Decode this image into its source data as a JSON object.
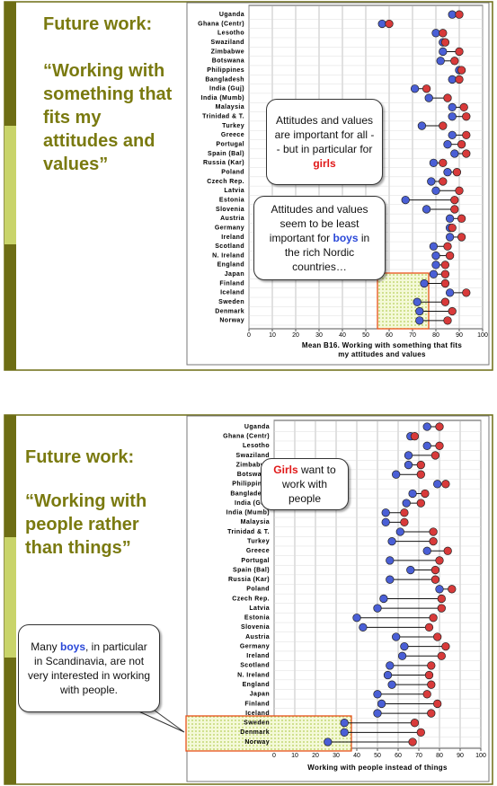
{
  "chart_data": [
    {
      "type": "dumbbell",
      "title": "Future work:",
      "subtitle": "“Working with something that fits my attitudes and values”",
      "xlabel": "Mean B16. Working with something that fits my attitudes and values",
      "categories": [
        "Uganda",
        "Ghana (Centr)",
        "Lesotho",
        "Swaziland",
        "Zimbabwe",
        "Botswana",
        "Philippines",
        "Bangladesh",
        "India (Guj)",
        "India (Mumb)",
        "Malaysia",
        "Trinidad & T.",
        "Turkey",
        "Greece",
        "Portugal",
        "Spain (Bal)",
        "Russia (Kar)",
        "Poland",
        "Czech Rep.",
        "Latvia",
        "Estonia",
        "Slovenia",
        "Austria",
        "Germany",
        "Ireland",
        "Scotland",
        "N. Ireland",
        "England",
        "Japan",
        "Finland",
        "Iceland",
        "Sweden",
        "Denmark",
        "Norway"
      ],
      "series": [
        {
          "color": "#4a5fd6",
          "values": [
            87,
            57,
            80,
            83,
            83,
            82,
            90,
            87,
            71,
            77,
            87,
            87,
            74,
            87,
            85,
            88,
            79,
            85,
            78,
            80,
            67,
            76,
            86,
            86,
            86,
            79,
            80,
            80,
            79,
            75,
            86,
            72,
            73,
            73
          ]
        },
        {
          "color": "#d83a3a",
          "values": [
            90,
            60,
            83,
            84,
            90,
            88,
            91,
            90,
            76,
            85,
            92,
            93,
            83,
            93,
            91,
            93,
            83,
            89,
            83,
            90,
            88,
            88,
            91,
            87,
            91,
            85,
            86,
            84,
            84,
            84,
            93,
            84,
            87,
            85
          ]
        }
      ],
      "xlim": [
        0,
        100
      ],
      "xticks": [
        0,
        10,
        20,
        30,
        40,
        50,
        60,
        70,
        80,
        90,
        100
      ],
      "grid": true,
      "annotations": [
        [
          {
            "text": "Attitudes and values are important for all  - - but in particular for "
          },
          {
            "text": "girls",
            "color": "#e01818"
          }
        ],
        [
          {
            "text": "Attitudes and values seem to be least important for "
          },
          {
            "text": "boys",
            "color": "#2a48d8"
          },
          {
            "text": " in the rich Nordic countries…"
          }
        ]
      ]
    },
    {
      "type": "dumbbell",
      "title": "Future work:",
      "subtitle": "“Working with people rather than things”",
      "xlabel": "Working with people instead of things",
      "categories": [
        "Uganda",
        "Ghana (Centr)",
        "Lesotho",
        "Swaziland",
        "Zimbabwe",
        "Botswana",
        "Philippines",
        "Bangladesh",
        "India (Guj)",
        "India (Mumb)",
        "Malaysia",
        "Trinidad & T.",
        "Turkey",
        "Greece",
        "Portugal",
        "Spain (Bal)",
        "Russia (Kar)",
        "Poland",
        "Czech Rep.",
        "Latvia",
        "Estonia",
        "Slovenia",
        "Austria",
        "Germany",
        "Ireland",
        "Scotland",
        "N. Ireland",
        "England",
        "Japan",
        "Finland",
        "Iceland",
        "Sweden",
        "Denmark",
        "Norway"
      ],
      "series": [
        {
          "color": "#4a5fd6",
          "values": [
            74,
            66,
            74,
            65,
            65,
            59,
            79,
            67,
            64,
            54,
            54,
            61,
            57,
            74,
            56,
            66,
            56,
            80,
            53,
            50,
            40,
            43,
            59,
            63,
            62,
            56,
            55,
            57,
            50,
            52,
            50,
            34,
            34,
            26
          ]
        },
        {
          "color": "#d83a3a",
          "values": [
            80,
            68,
            80,
            78,
            71,
            71,
            83,
            73,
            71,
            63,
            63,
            77,
            77,
            84,
            80,
            78,
            78,
            86,
            81,
            81,
            77,
            75,
            79,
            83,
            81,
            76,
            75,
            76,
            74,
            79,
            76,
            68,
            71,
            67
          ]
        }
      ],
      "xlim": [
        0,
        100
      ],
      "xticks": [
        0,
        10,
        20,
        30,
        40,
        50,
        60,
        70,
        80,
        90,
        100
      ],
      "grid": true,
      "annotations": [
        [
          {
            "text": "Girls",
            "color": "#e01818"
          },
          {
            "text": " want to work with people"
          }
        ],
        [
          {
            "text": "Many "
          },
          {
            "text": "boys",
            "color": "#2a48d8"
          },
          {
            "text": ", in particular in Scandinavia, are not very interested in working with people."
          }
        ]
      ]
    }
  ]
}
